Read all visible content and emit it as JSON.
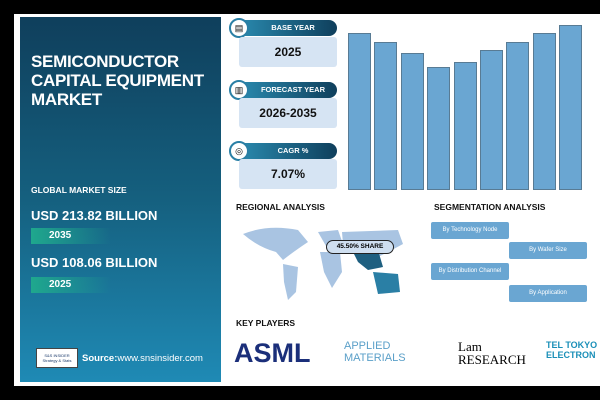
{
  "left_panel": {
    "title": "SEMICONDUCTOR CAPITAL EQUIPMENT MARKET",
    "global_label": "GLOBAL MARKET SIZE",
    "value_2035": "USD 213.82 BILLION",
    "year_2035": "2035",
    "value_2025": "USD 108.06 BILLION",
    "year_2025": "2025",
    "source_label": "Source:",
    "source_url": "www.snsinsider.com",
    "logo_text": "S&S INSIDER Strategy & Stats"
  },
  "stats": [
    {
      "label": "BASE YEAR",
      "value": "2025",
      "icon": "document-icon"
    },
    {
      "label": "FORECAST YEAR",
      "value": "2026-2035",
      "icon": "chart-icon"
    },
    {
      "label": "CAGR %",
      "value": "7.07%",
      "icon": "growth-icon"
    }
  ],
  "chart_data": {
    "type": "bar",
    "values": [
      157,
      148,
      137,
      123,
      128,
      140,
      148,
      157,
      165
    ],
    "color": "#6aa6d2",
    "grid": false,
    "title": "",
    "xlabel": "",
    "ylabel": ""
  },
  "regional": {
    "title": "REGIONAL ANALYSIS",
    "share": "45.50% SHARE"
  },
  "segmentation": {
    "title": "SEGMENTATION ANALYSIS",
    "items": [
      "By Technology Node",
      "By Wafer Size",
      "By Distribution Channel",
      "By Application"
    ]
  },
  "key_players": {
    "title": "KEY PLAYERS",
    "logos": [
      "ASML",
      "APPLIED MATERIALS",
      "Lam RESEARCH",
      "TEL TOKYO ELECTRON"
    ]
  }
}
